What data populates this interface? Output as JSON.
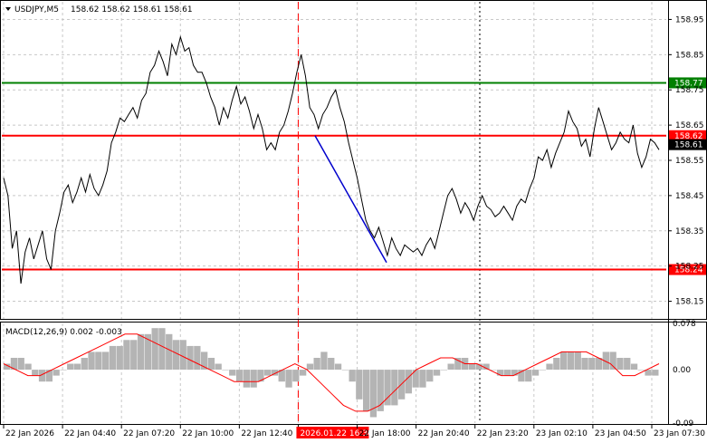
{
  "header": {
    "symbol": "USDJPY,M5",
    "quote": "158.62 158.62 158.61 158.61"
  },
  "macd": {
    "label": "MACD(12,26,9) 0.002 -0.003"
  },
  "colors": {
    "background": "#ffffff",
    "grid": "#c8c8c8",
    "price_line": "#000000",
    "level_red": "#ff0000",
    "level_green": "#008000",
    "trend_line": "#0000cc",
    "macd_hist": "#b4b4b4",
    "macd_signal": "#ff0000",
    "current_price_label_bg": "#000000",
    "time_marker_bg": "#ff0000"
  },
  "icons": {
    "symbol_menu": "dropdown-triangle-icon"
  },
  "chart_data": {
    "type": "line",
    "y_price_range": [
      158.1,
      159.0
    ],
    "price_ticks": [
      "158.95",
      "158.85",
      "158.75",
      "158.65",
      "158.55",
      "158.45",
      "158.35",
      "158.25",
      "158.15"
    ],
    "macd_range": [
      -0.09,
      0.078
    ],
    "macd_ticks": [
      "0.078",
      "0.00",
      "-0.09"
    ],
    "time_labels": [
      "22 Jan 2026",
      "22 Jan 04:40",
      "22 Jan 07:20",
      "22 Jan 10:00",
      "22 Jan 12:40",
      "2026.01.22 16:30",
      "22 Jan 18:00",
      "22 Jan 20:40",
      "22 Jan 23:20",
      "23 Jan 02:10",
      "23 Jan 04:50",
      "23 Jan 07:30"
    ],
    "highlighted_time": "2026.01.22 16:30",
    "levels": [
      {
        "price": 158.77,
        "label": "158.77",
        "color": "#008000"
      },
      {
        "price": 158.62,
        "label": "158.62",
        "color": "#ff0000"
      },
      {
        "price": 158.24,
        "label": "158.24",
        "color": "#ff0000"
      }
    ],
    "current_price": "158.61",
    "trend_line": {
      "from": 158.62,
      "to": 158.26
    },
    "price_series": [
      158.5,
      158.45,
      158.3,
      158.35,
      158.2,
      158.29,
      158.33,
      158.27,
      158.31,
      158.35,
      158.27,
      158.24,
      158.35,
      158.4,
      158.46,
      158.48,
      158.43,
      158.46,
      158.5,
      158.46,
      158.51,
      158.47,
      158.45,
      158.48,
      158.52,
      158.6,
      158.63,
      158.67,
      158.66,
      158.68,
      158.7,
      158.67,
      158.72,
      158.74,
      158.8,
      158.82,
      158.86,
      158.83,
      158.79,
      158.88,
      158.85,
      158.9,
      158.86,
      158.87,
      158.82,
      158.8,
      158.8,
      158.77,
      158.73,
      158.7,
      158.65,
      158.7,
      158.67,
      158.72,
      158.76,
      158.71,
      158.73,
      158.69,
      158.64,
      158.68,
      158.64,
      158.58,
      158.6,
      158.58,
      158.63,
      158.65,
      158.69,
      158.74,
      158.8,
      158.85,
      158.79,
      158.7,
      158.68,
      158.64,
      158.68,
      158.7,
      158.73,
      158.75,
      158.7,
      158.66,
      158.6,
      158.55,
      158.5,
      158.44,
      158.38,
      158.35,
      158.33,
      158.36,
      158.32,
      158.28,
      158.33,
      158.3,
      158.28,
      158.31,
      158.3,
      158.29,
      158.3,
      158.28,
      158.31,
      158.33,
      158.3,
      158.35,
      158.4,
      158.45,
      158.47,
      158.44,
      158.4,
      158.43,
      158.41,
      158.38,
      158.42,
      158.45,
      158.42,
      158.41,
      158.39,
      158.4,
      158.42,
      158.4,
      158.38,
      158.42,
      158.44,
      158.43,
      158.47,
      158.5,
      158.56,
      158.55,
      158.58,
      158.53,
      158.57,
      158.6,
      158.63,
      158.69,
      158.66,
      158.64,
      158.59,
      158.61,
      158.56,
      158.64,
      158.7,
      158.66,
      158.62,
      158.58,
      158.6,
      158.63,
      158.61,
      158.6,
      158.65,
      158.57,
      158.53,
      158.56,
      158.61,
      158.6,
      158.58
    ],
    "macd_hist": [
      0.01,
      0.02,
      0.02,
      0.01,
      -0.01,
      -0.02,
      -0.02,
      -0.01,
      0,
      0.01,
      0.01,
      0.02,
      0.03,
      0.03,
      0.03,
      0.04,
      0.04,
      0.05,
      0.05,
      0.06,
      0.06,
      0.07,
      0.07,
      0.06,
      0.05,
      0.05,
      0.04,
      0.04,
      0.03,
      0.02,
      0.01,
      0,
      -0.01,
      -0.02,
      -0.03,
      -0.03,
      -0.02,
      -0.01,
      -0.01,
      -0.02,
      -0.03,
      -0.02,
      -0.01,
      0.01,
      0.02,
      0.03,
      0.02,
      0.01,
      0,
      -0.02,
      -0.05,
      -0.07,
      -0.08,
      -0.07,
      -0.06,
      -0.06,
      -0.05,
      -0.04,
      -0.03,
      -0.03,
      -0.02,
      -0.01,
      0,
      0.01,
      0.02,
      0.02,
      0.01,
      0.01,
      0.01,
      0,
      -0.01,
      -0.01,
      -0.01,
      -0.02,
      -0.02,
      -0.01,
      0,
      0.01,
      0.02,
      0.03,
      0.03,
      0.03,
      0.02,
      0.02,
      0.02,
      0.03,
      0.03,
      0.02,
      0.02,
      0.01,
      0,
      -0.01,
      -0.01
    ],
    "macd_signal": [
      0.01,
      0.0,
      -0.01,
      -0.01,
      0,
      0.01,
      0.02,
      0.03,
      0.04,
      0.05,
      0.06,
      0.06,
      0.05,
      0.04,
      0.03,
      0.02,
      0.01,
      0,
      -0.01,
      -0.02,
      -0.02,
      -0.02,
      -0.01,
      0,
      0.01,
      0,
      -0.02,
      -0.04,
      -0.06,
      -0.07,
      -0.07,
      -0.06,
      -0.04,
      -0.02,
      0,
      0.01,
      0.02,
      0.02,
      0.01,
      0.01,
      0,
      -0.01,
      -0.01,
      0,
      0.01,
      0.02,
      0.03,
      0.03,
      0.03,
      0.02,
      0.01,
      -0.01,
      -0.01,
      0,
      0.01
    ]
  }
}
